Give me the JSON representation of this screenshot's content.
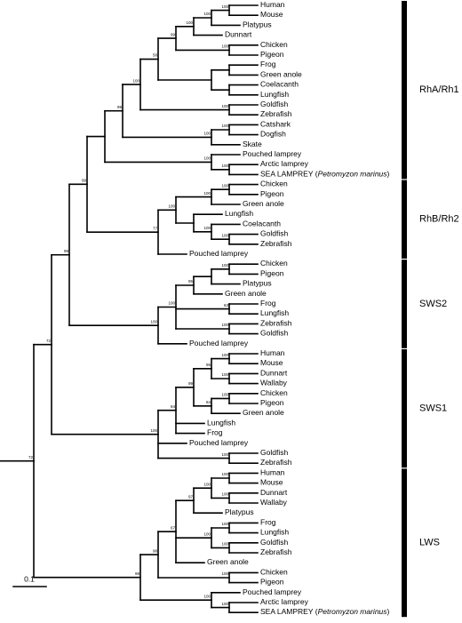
{
  "scale_bar": "0.1",
  "tree": {
    "support": 72,
    "children": [
      {
        "support": 72,
        "children": [
          {
            "support": 99,
            "children": [
              {
                "support": 99,
                "children": [
                  {
                    "clade": "RhA/Rh1",
                    "children": [
                      {
                        "support": 99,
                        "children": [
                          {
                            "support": 100,
                            "children": [
                              {
                                "support": 58,
                                "children": [
                                  {
                                    "support": 99,
                                    "children": [
                                      {
                                        "support": 100,
                                        "children": [
                                          {
                                            "support": 100,
                                            "children": [
                                              {
                                                "support": 100,
                                                "children": [
                                                  {
                                                    "label": "Human"
                                                  },
                                                  {
                                                    "label": "Mouse"
                                                  }
                                                ]
                                              },
                                              {
                                                "label": "Platypus"
                                              }
                                            ]
                                          },
                                          {
                                            "label": "Dunnart"
                                          }
                                        ]
                                      },
                                      {
                                        "support": 100,
                                        "children": [
                                          {
                                            "label": "Chicken"
                                          },
                                          {
                                            "label": "Pigeon"
                                          }
                                        ]
                                      }
                                    ]
                                  },
                                  {
                                    "children": [
                                      {
                                        "children": [
                                          {
                                            "label": "Frog"
                                          },
                                          {
                                            "label": "Green anole"
                                          }
                                        ]
                                      },
                                      {
                                        "children": [
                                          {
                                            "label": "Coelacanth"
                                          },
                                          {
                                            "label": "Lungfish"
                                          }
                                        ]
                                      }
                                    ]
                                  }
                                ]
                              },
                              {
                                "support": 100,
                                "children": [
                                  {
                                    "label": "Goldfish"
                                  },
                                  {
                                    "label": "Zebrafish"
                                  }
                                ]
                              }
                            ]
                          },
                          {
                            "support": 100,
                            "children": [
                              {
                                "support": 100,
                                "children": [
                                  {
                                    "label": "Catshark"
                                  },
                                  {
                                    "label": "Dogfish"
                                  }
                                ]
                              },
                              {
                                "label": "Skate"
                              }
                            ]
                          }
                        ]
                      },
                      {
                        "support": 100,
                        "children": [
                          {
                            "label": "Pouched lamprey"
                          },
                          {
                            "support": 100,
                            "children": [
                              {
                                "label": "Arctic lamprey"
                              },
                              {
                                "label": "SEA LAMPREY (",
                                "italic": "Petromyzon marinus",
                                "tail": ")"
                              }
                            ]
                          }
                        ]
                      }
                    ]
                  },
                  {
                    "clade": "RhB/Rh2",
                    "support": 77,
                    "children": [
                      {
                        "support": 100,
                        "children": [
                          {
                            "support": 100,
                            "children": [
                              {
                                "support": 100,
                                "children": [
                                  {
                                    "label": "Chicken"
                                  },
                                  {
                                    "label": "Pigeon"
                                  }
                                ]
                              },
                              {
                                "label": "Green anole"
                              }
                            ]
                          },
                          {
                            "children": [
                              {
                                "label": "Lungfish"
                              },
                              {
                                "support": 100,
                                "children": [
                                  {
                                    "label": "Coelacanth"
                                  },
                                  {
                                    "support": 100,
                                    "children": [
                                      {
                                        "label": "Goldfish"
                                      },
                                      {
                                        "label": "Zebrafish"
                                      }
                                    ]
                                  }
                                ]
                              }
                            ]
                          }
                        ]
                      },
                      {
                        "label": "Pouched lamprey"
                      }
                    ]
                  }
                ]
              },
              {
                "clade": "SWS2",
                "support": 100,
                "children": [
                  {
                    "support": 100,
                    "children": [
                      {
                        "support": 95,
                        "children": [
                          {
                            "children": [
                              {
                                "support": 100,
                                "children": [
                                  {
                                    "label": "Chicken"
                                  },
                                  {
                                    "label": "Pigeon"
                                  }
                                ]
                              },
                              {
                                "label": "Platypus"
                              }
                            ]
                          },
                          {
                            "label": "Green anole"
                          }
                        ]
                      },
                      {
                        "support": 63,
                        "children": [
                          {
                            "label": "Frog"
                          },
                          {
                            "label": "Lungfish"
                          }
                        ]
                      },
                      {
                        "support": 100,
                        "children": [
                          {
                            "label": "Zebrafish"
                          },
                          {
                            "label": "Goldfish"
                          }
                        ]
                      }
                    ]
                  },
                  {
                    "label": "Pouched lamprey"
                  }
                ]
              }
            ]
          },
          {
            "clade": "SWS1",
            "support": 100,
            "children": [
              {
                "support": 94,
                "children": [
                  {
                    "support": 99,
                    "children": [
                      {
                        "support": 95,
                        "children": [
                          {
                            "support": 100,
                            "children": [
                              {
                                "label": "Human"
                              },
                              {
                                "label": "Mouse"
                              }
                            ]
                          },
                          {
                            "support": 100,
                            "children": [
                              {
                                "label": "Dunnart"
                              },
                              {
                                "label": "Wallaby"
                              }
                            ]
                          }
                        ]
                      },
                      {
                        "support": 84,
                        "children": [
                          {
                            "support": 100,
                            "children": [
                              {
                                "label": "Chicken"
                              },
                              {
                                "label": "Pigeon"
                              }
                            ]
                          },
                          {
                            "label": "Green anole"
                          }
                        ]
                      }
                    ]
                  },
                  {
                    "label": "Lungfish"
                  },
                  {
                    "label": "Frog"
                  }
                ]
              },
              {
                "label": "Pouched lamprey"
              },
              {
                "support": 100,
                "children": [
                  {
                    "label": "Goldfish"
                  },
                  {
                    "label": "Zebrafish"
                  }
                ]
              }
            ]
          }
        ]
      },
      {
        "clade": "LWS",
        "support": 99,
        "children": [
          {
            "support": 98,
            "children": [
              {
                "support": 67,
                "children": [
                  {
                    "support": 97,
                    "children": [
                      {
                        "support": 100,
                        "children": [
                          {
                            "support": 100,
                            "children": [
                              {
                                "label": "Human"
                              },
                              {
                                "label": "Mouse"
                              }
                            ]
                          },
                          {
                            "support": 100,
                            "children": [
                              {
                                "label": "Dunnart"
                              },
                              {
                                "label": "Wallaby"
                              }
                            ]
                          }
                        ]
                      },
                      {
                        "label": "Platypus"
                      }
                    ]
                  },
                  {
                    "support": 100,
                    "children": [
                      {
                        "support": 100,
                        "children": [
                          {
                            "label": "Frog"
                          },
                          {
                            "label": "Lungfish"
                          }
                        ]
                      },
                      {
                        "support": 100,
                        "children": [
                          {
                            "label": "Goldfish"
                          },
                          {
                            "label": "Zebrafish"
                          }
                        ]
                      }
                    ]
                  },
                  {
                    "label": "Green anole"
                  }
                ]
              },
              {
                "support": 100,
                "children": [
                  {
                    "label": "Chicken"
                  },
                  {
                    "label": "Pigeon"
                  }
                ]
              }
            ]
          },
          {
            "support": 100,
            "children": [
              {
                "label": "Pouched lamprey"
              },
              {
                "support": 100,
                "children": [
                  {
                    "label": "Arctic lamprey"
                  },
                  {
                    "label": "SEA LAMPREY (",
                    "italic": "Petromyzon marinus",
                    "tail": ")"
                  }
                ]
              }
            ]
          }
        ]
      }
    ]
  }
}
